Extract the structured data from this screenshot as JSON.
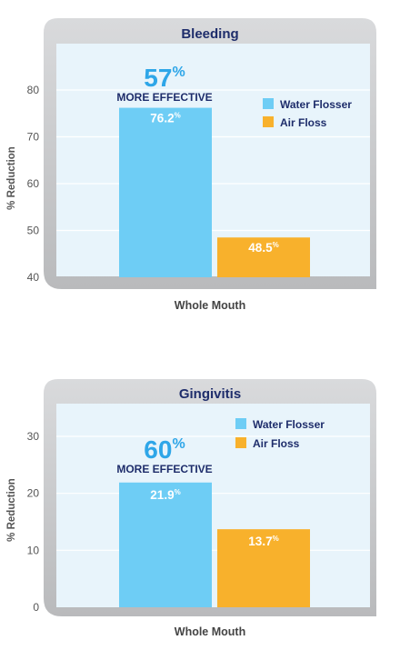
{
  "chart_data": [
    {
      "type": "bar",
      "title": "Bleeding",
      "ylabel": "% Reduction",
      "xlabel": "Whole Mouth",
      "categories": [
        "Whole Mouth"
      ],
      "ylim": [
        40,
        85
      ],
      "yticks": [
        "40",
        "50",
        "60",
        "70",
        "80"
      ],
      "series": [
        {
          "name": "Water Flosser",
          "values": [
            76.2
          ],
          "label": "76.2",
          "color": "#6ecdf5"
        },
        {
          "name": "Air Floss",
          "values": [
            48.5
          ],
          "label": "48.5",
          "color": "#f8b12c"
        }
      ],
      "annotation": {
        "value": "57",
        "text": "MORE EFFECTIVE"
      },
      "label_suffix": "%",
      "legend": "right"
    },
    {
      "type": "bar",
      "title": "Gingivitis",
      "ylabel": "% Reduction",
      "xlabel": "Whole Mouth",
      "categories": [
        "Whole Mouth"
      ],
      "ylim": [
        0,
        33.6
      ],
      "yticks": [
        "0",
        "10",
        "20",
        "30"
      ],
      "series": [
        {
          "name": "Water Flosser",
          "values": [
            21.9
          ],
          "label": "21.9",
          "color": "#6ecdf5"
        },
        {
          "name": "Air Floss",
          "values": [
            13.7
          ],
          "label": "13.7",
          "color": "#f8b12c"
        }
      ],
      "annotation": {
        "value": "60",
        "text": "MORE EFFECTIVE"
      },
      "label_suffix": "%",
      "legend": "top-right"
    }
  ]
}
